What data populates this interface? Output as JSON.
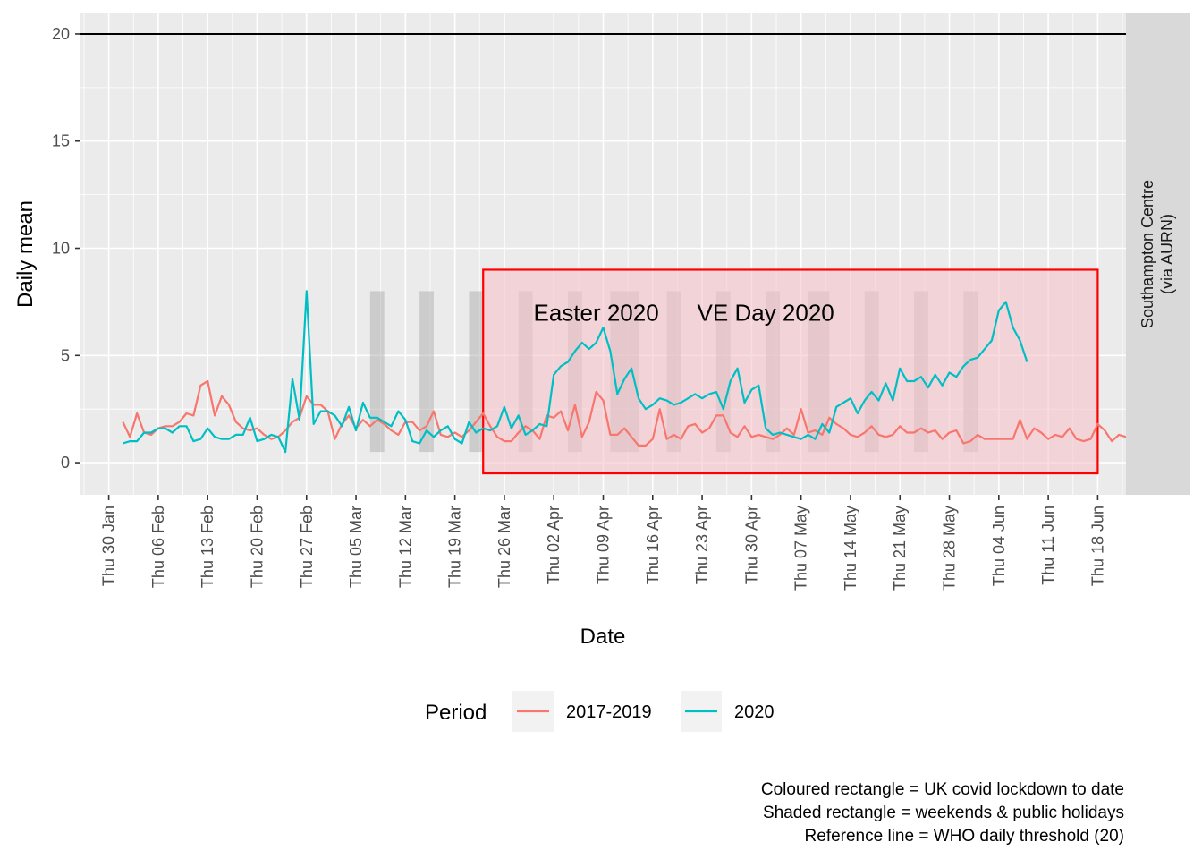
{
  "chart_data": {
    "type": "line",
    "xlabel": "Date",
    "ylabel": "Daily mean",
    "ylim": [
      -1.5,
      21
    ],
    "yticks": [
      0,
      5,
      10,
      15,
      20
    ],
    "xlim": [
      "2020-01-26",
      "2020-06-22"
    ],
    "xticks": [
      {
        "date": "2020-01-30",
        "label": "Thu 30 Jan"
      },
      {
        "date": "2020-02-06",
        "label": "Thu 06 Feb"
      },
      {
        "date": "2020-02-13",
        "label": "Thu 13 Feb"
      },
      {
        "date": "2020-02-20",
        "label": "Thu 20 Feb"
      },
      {
        "date": "2020-02-27",
        "label": "Thu 27 Feb"
      },
      {
        "date": "2020-03-05",
        "label": "Thu 05 Mar"
      },
      {
        "date": "2020-03-12",
        "label": "Thu 12 Mar"
      },
      {
        "date": "2020-03-19",
        "label": "Thu 19 Mar"
      },
      {
        "date": "2020-03-26",
        "label": "Thu 26 Mar"
      },
      {
        "date": "2020-04-02",
        "label": "Thu 02 Apr"
      },
      {
        "date": "2020-04-09",
        "label": "Thu 09 Apr"
      },
      {
        "date": "2020-04-16",
        "label": "Thu 16 Apr"
      },
      {
        "date": "2020-04-23",
        "label": "Thu 23 Apr"
      },
      {
        "date": "2020-04-30",
        "label": "Thu 30 Apr"
      },
      {
        "date": "2020-05-07",
        "label": "Thu 07 May"
      },
      {
        "date": "2020-05-14",
        "label": "Thu 14 May"
      },
      {
        "date": "2020-05-21",
        "label": "Thu 21 May"
      },
      {
        "date": "2020-05-28",
        "label": "Thu 28 May"
      },
      {
        "date": "2020-06-04",
        "label": "Thu 04 Jun"
      },
      {
        "date": "2020-06-11",
        "label": "Thu 11 Jun"
      },
      {
        "date": "2020-06-18",
        "label": "Thu 18 Jun"
      }
    ],
    "facet_label": [
      "Southampton Centre",
      "(via AURN)"
    ],
    "reference_line": {
      "y": 20,
      "color": "#000000"
    },
    "lockdown_rect": {
      "start": "2020-03-23",
      "end": "2020-06-18",
      "ymin": -0.5,
      "ymax": 9,
      "fill": "#f7c4cb",
      "border": "#ff0000"
    },
    "shaded_periods": {
      "ymin": 0.5,
      "ymax": 8,
      "ranges": [
        [
          "2020-03-07",
          "2020-03-08"
        ],
        [
          "2020-03-14",
          "2020-03-15"
        ],
        [
          "2020-03-21",
          "2020-03-22"
        ],
        [
          "2020-03-28",
          "2020-03-29"
        ],
        [
          "2020-04-04",
          "2020-04-05"
        ],
        [
          "2020-04-10",
          "2020-04-13"
        ],
        [
          "2020-04-18",
          "2020-04-19"
        ],
        [
          "2020-04-25",
          "2020-04-26"
        ],
        [
          "2020-05-02",
          "2020-05-03"
        ],
        [
          "2020-05-08",
          "2020-05-10"
        ],
        [
          "2020-05-16",
          "2020-05-17"
        ],
        [
          "2020-05-23",
          "2020-05-24"
        ],
        [
          "2020-05-30",
          "2020-05-31"
        ]
      ]
    },
    "annotations": [
      {
        "text": "Easter 2020",
        "date": "2020-04-08",
        "y": 7.0
      },
      {
        "text": "VE Day 2020",
        "date": "2020-05-02",
        "y": 7.0
      }
    ],
    "series": [
      {
        "name": "2017-2019",
        "color": "#f8766d",
        "start": "2020-02-01",
        "values": [
          1.9,
          1.2,
          2.3,
          1.4,
          1.3,
          1.6,
          1.7,
          1.7,
          1.9,
          2.3,
          2.2,
          3.6,
          3.8,
          2.2,
          3.1,
          2.7,
          1.9,
          1.6,
          1.5,
          1.6,
          1.3,
          1.1,
          1.2,
          1.5,
          1.9,
          2.1,
          3.1,
          2.7,
          2.7,
          2.4,
          1.1,
          1.8,
          2.2,
          1.6,
          2.0,
          1.7,
          2.0,
          1.8,
          1.5,
          1.3,
          1.9,
          1.9,
          1.5,
          1.7,
          2.4,
          1.3,
          1.2,
          1.4,
          1.2,
          1.5,
          1.9,
          2.3,
          1.7,
          1.2,
          1.0,
          1.0,
          1.4,
          1.7,
          1.5,
          1.1,
          2.2,
          2.1,
          2.4,
          1.5,
          2.7,
          1.2,
          1.9,
          3.3,
          2.9,
          1.3,
          1.3,
          1.6,
          1.2,
          0.8,
          0.8,
          1.1,
          2.5,
          1.1,
          1.3,
          1.1,
          1.7,
          1.8,
          1.4,
          1.6,
          2.2,
          2.2,
          1.4,
          1.2,
          1.7,
          1.2,
          1.3,
          1.2,
          1.1,
          1.3,
          1.6,
          1.3,
          2.5,
          1.4,
          1.5,
          1.3,
          2.1,
          1.8,
          1.6,
          1.3,
          1.2,
          1.4,
          1.7,
          1.3,
          1.2,
          1.3,
          1.7,
          1.4,
          1.4,
          1.6,
          1.4,
          1.5,
          1.1,
          1.4,
          1.5,
          0.9,
          1.0,
          1.3,
          1.1,
          1.1,
          1.1,
          1.1,
          1.1,
          2.0,
          1.1,
          1.6,
          1.4,
          1.1,
          1.3,
          1.2,
          1.6,
          1.1,
          1.0,
          1.1,
          1.8,
          1.5,
          1.0,
          1.3,
          1.2,
          1.1,
          1.3,
          1.0,
          1.1
        ]
      },
      {
        "name": "2020",
        "color": "#00bfc4",
        "start": "2020-02-01",
        "values": [
          0.9,
          1.0,
          1.0,
          1.4,
          1.4,
          1.6,
          1.6,
          1.4,
          1.7,
          1.7,
          1.0,
          1.1,
          1.6,
          1.2,
          1.1,
          1.1,
          1.3,
          1.3,
          2.1,
          1.0,
          1.1,
          1.3,
          1.2,
          0.5,
          3.9,
          2.0,
          8.0,
          1.8,
          2.4,
          2.4,
          2.2,
          1.7,
          2.6,
          1.5,
          2.8,
          2.1,
          2.1,
          1.9,
          1.7,
          2.4,
          2.0,
          1.0,
          0.9,
          1.5,
          1.2,
          1.5,
          1.7,
          1.1,
          0.9,
          1.9,
          1.4,
          1.6,
          1.5,
          1.7,
          2.6,
          1.6,
          2.2,
          1.3,
          1.5,
          1.8,
          1.7,
          4.1,
          4.5,
          4.7,
          5.2,
          5.6,
          5.3,
          5.6,
          6.3,
          5.2,
          3.2,
          3.9,
          4.4,
          3.0,
          2.5,
          2.7,
          3.0,
          2.9,
          2.7,
          2.8,
          3.0,
          3.2,
          3.0,
          3.2,
          3.3,
          2.5,
          3.8,
          4.4,
          2.8,
          3.4,
          3.6,
          1.6,
          1.3,
          1.4,
          1.3,
          1.2,
          1.1,
          1.3,
          1.1,
          1.8,
          1.4,
          2.6,
          2.8,
          3.0,
          2.3,
          2.9,
          3.3,
          2.9,
          3.7,
          2.9,
          4.4,
          3.8,
          3.8,
          4.0,
          3.5,
          4.1,
          3.6,
          4.2,
          4.0,
          4.5,
          4.8,
          4.9,
          5.3,
          5.7,
          7.1,
          7.5,
          6.3,
          5.7,
          4.7
        ]
      }
    ]
  },
  "legend": {
    "title": "Period",
    "items": [
      {
        "label": "2017-2019",
        "color": "#f8766d"
      },
      {
        "label": "2020",
        "color": "#00bfc4"
      }
    ]
  },
  "caption": [
    "Coloured rectangle = UK covid lockdown to date",
    "Shaded rectangle = weekends & public holidays",
    "Reference line = WHO daily threshold (20)"
  ]
}
